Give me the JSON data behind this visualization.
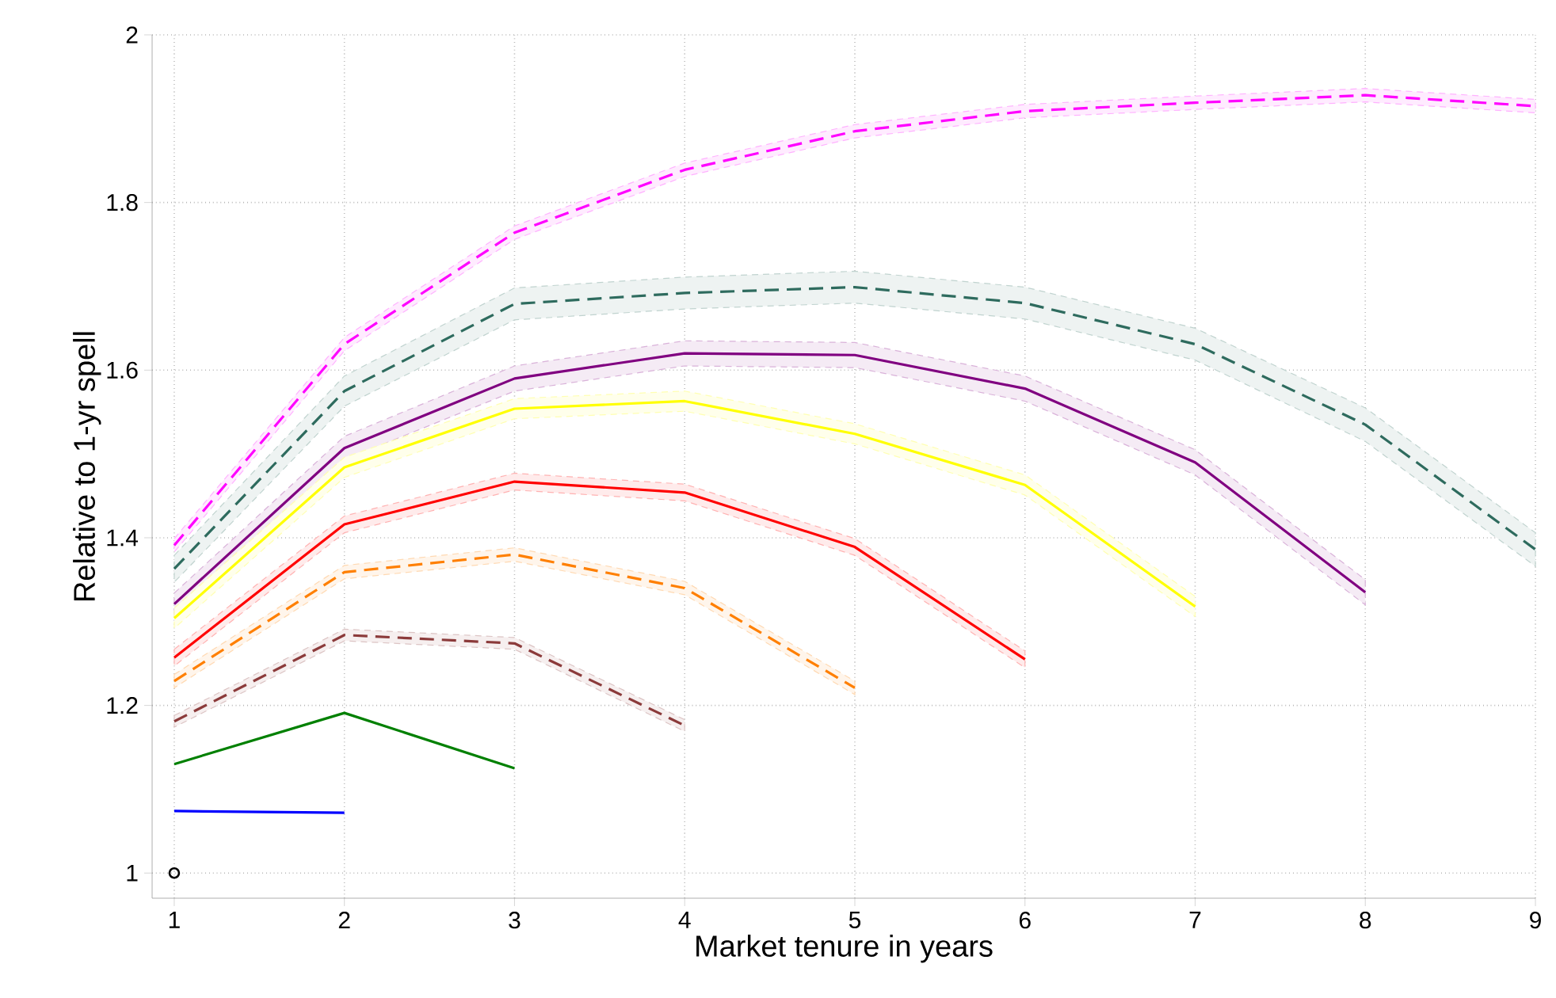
{
  "chart_data": {
    "type": "line",
    "xlabel": "Market tenure in years",
    "ylabel": "Relative to 1-yr spell",
    "xlim": [
      0.87,
      9
    ],
    "ylim": [
      0.97,
      2
    ],
    "xticks": [
      1,
      2,
      3,
      4,
      5,
      6,
      7,
      8,
      9
    ],
    "yticks": [
      1,
      1.2,
      1.4,
      1.6,
      1.8,
      2
    ],
    "grid": true,
    "series": [
      {
        "color": "#ff00ff",
        "line_style": "dashed",
        "x": [
          1,
          2,
          3,
          4,
          5,
          6,
          7,
          8,
          9
        ],
        "values": [
          1.391,
          1.631,
          1.764,
          1.839,
          1.885,
          1.909,
          1.919,
          1.928,
          1.915
        ],
        "lower": [
          1.383,
          1.623,
          1.756,
          1.831,
          1.877,
          1.901,
          1.911,
          1.92,
          1.907
        ],
        "upper": [
          1.399,
          1.639,
          1.772,
          1.847,
          1.893,
          1.917,
          1.927,
          1.936,
          1.923
        ]
      },
      {
        "color": "#2e6b5e",
        "line_style": "dashed",
        "x": [
          1,
          2,
          3,
          4,
          5,
          6,
          7,
          8,
          9
        ],
        "values": [
          1.363,
          1.575,
          1.679,
          1.692,
          1.699,
          1.68,
          1.631,
          1.535,
          1.386
        ],
        "lower": [
          1.347,
          1.557,
          1.66,
          1.673,
          1.68,
          1.661,
          1.612,
          1.515,
          1.366
        ],
        "upper": [
          1.379,
          1.593,
          1.698,
          1.711,
          1.718,
          1.699,
          1.65,
          1.555,
          1.406
        ]
      },
      {
        "color": "#800080",
        "line_style": "solid",
        "x": [
          1,
          2,
          3,
          4,
          5,
          6,
          7,
          8
        ],
        "values": [
          1.321,
          1.507,
          1.59,
          1.62,
          1.618,
          1.578,
          1.49,
          1.335
        ],
        "lower": [
          1.308,
          1.493,
          1.575,
          1.605,
          1.603,
          1.563,
          1.475,
          1.32
        ],
        "upper": [
          1.334,
          1.521,
          1.605,
          1.635,
          1.633,
          1.593,
          1.505,
          1.35
        ]
      },
      {
        "color": "#ffff00",
        "line_style": "solid",
        "x": [
          1,
          2,
          3,
          4,
          5,
          6,
          7
        ],
        "values": [
          1.304,
          1.484,
          1.554,
          1.563,
          1.524,
          1.463,
          1.318
        ],
        "lower": [
          1.292,
          1.472,
          1.542,
          1.551,
          1.512,
          1.451,
          1.306
        ],
        "upper": [
          1.316,
          1.496,
          1.566,
          1.575,
          1.536,
          1.475,
          1.33
        ]
      },
      {
        "color": "#ff0000",
        "line_style": "solid",
        "x": [
          1,
          2,
          3,
          4,
          5,
          6
        ],
        "values": [
          1.257,
          1.416,
          1.467,
          1.454,
          1.389,
          1.255
        ],
        "lower": [
          1.247,
          1.406,
          1.457,
          1.444,
          1.379,
          1.245
        ],
        "upper": [
          1.267,
          1.426,
          1.477,
          1.464,
          1.399,
          1.265
        ]
      },
      {
        "color": "#ff7f00",
        "line_style": "dashed",
        "x": [
          1,
          2,
          3,
          4,
          5
        ],
        "values": [
          1.229,
          1.359,
          1.38,
          1.34,
          1.221
        ],
        "lower": [
          1.221,
          1.351,
          1.372,
          1.332,
          1.213
        ],
        "upper": [
          1.237,
          1.367,
          1.388,
          1.348,
          1.229
        ]
      },
      {
        "color": "#8b3a3a",
        "line_style": "dashed",
        "x": [
          1,
          2,
          3,
          4
        ],
        "values": [
          1.181,
          1.284,
          1.274,
          1.176
        ],
        "lower": [
          1.174,
          1.277,
          1.267,
          1.169
        ],
        "upper": [
          1.188,
          1.291,
          1.281,
          1.183
        ]
      },
      {
        "color": "#008000",
        "line_style": "solid",
        "x": [
          1,
          2,
          3
        ],
        "values": [
          1.13,
          1.191,
          1.125
        ]
      },
      {
        "color": "#0000ff",
        "line_style": "solid",
        "x": [
          1,
          2
        ],
        "values": [
          1.074,
          1.072
        ]
      },
      {
        "type": "scatter",
        "marker": "circle",
        "color": "#000000",
        "x": [
          1
        ],
        "values": [
          1
        ]
      }
    ]
  }
}
